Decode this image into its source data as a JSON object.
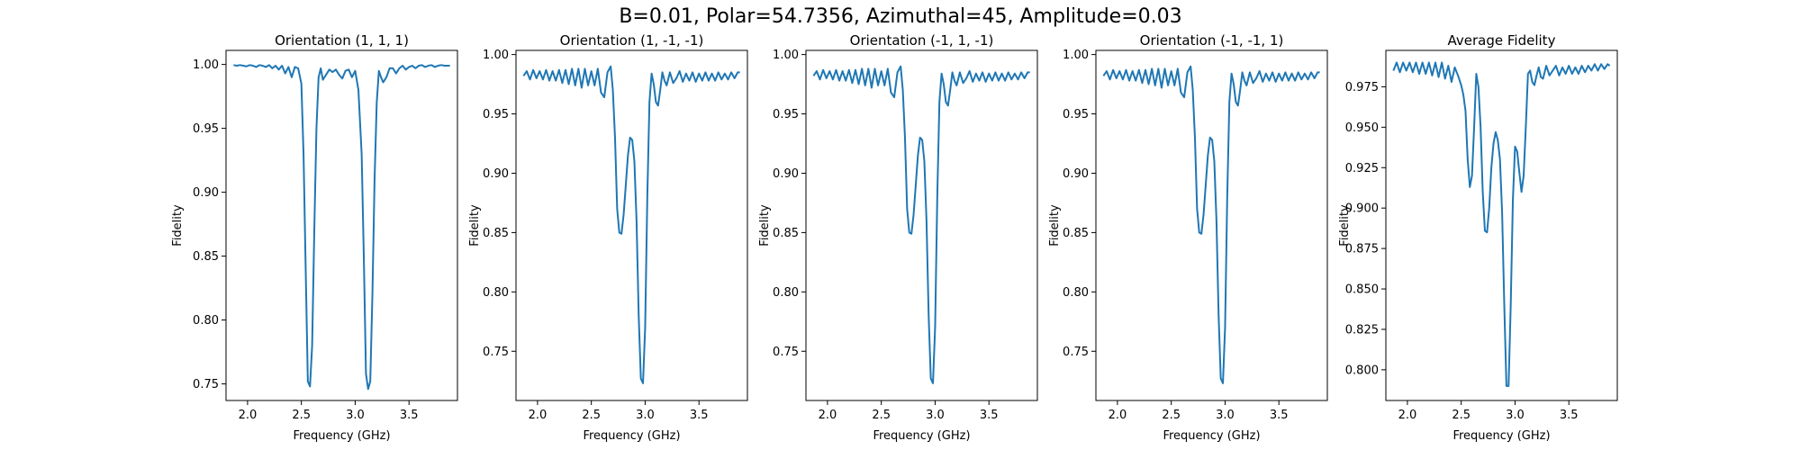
{
  "figure": {
    "suptitle": "B=0.01, Polar=54.7356, Azimuthal=45, Amplitude=0.03",
    "line_color": "#1f77b4"
  },
  "chart_data": [
    {
      "type": "line",
      "title": "Orientation (1, 1, 1)",
      "xlabel": "Frequency (GHz)",
      "ylabel": "Fidelity",
      "xlim": [
        1.8,
        3.95
      ],
      "ylim": [
        0.737,
        1.011
      ],
      "xticks": [
        2.0,
        2.5,
        3.0,
        3.5
      ],
      "xtick_labels": [
        "2.0",
        "2.5",
        "3.0",
        "3.5"
      ],
      "yticks": [
        0.75,
        0.8,
        0.85,
        0.9,
        0.95,
        1.0
      ],
      "ytick_labels": [
        "0.75",
        "0.80",
        "0.85",
        "0.90",
        "0.95",
        "1.00"
      ],
      "series": [
        {
          "x": [
            1.87,
            1.9,
            1.93,
            1.96,
            1.99,
            2.02,
            2.05,
            2.08,
            2.11,
            2.14,
            2.17,
            2.2,
            2.23,
            2.26,
            2.29,
            2.32,
            2.35,
            2.38,
            2.41,
            2.44,
            2.47,
            2.5,
            2.52,
            2.54,
            2.56,
            2.58,
            2.6,
            2.62,
            2.64,
            2.66,
            2.68,
            2.7,
            2.73,
            2.76,
            2.79,
            2.82,
            2.85,
            2.88,
            2.91,
            2.94,
            2.97,
            3.0,
            3.03,
            3.06,
            3.08,
            3.1,
            3.12,
            3.14,
            3.16,
            3.18,
            3.2,
            3.22,
            3.24,
            3.26,
            3.29,
            3.32,
            3.35,
            3.38,
            3.41,
            3.44,
            3.47,
            3.5,
            3.53,
            3.56,
            3.59,
            3.62,
            3.65,
            3.68,
            3.71,
            3.74,
            3.77,
            3.8,
            3.83,
            3.86,
            3.88
          ],
          "y": [
            0.9995,
            0.999,
            0.9995,
            0.999,
            0.9985,
            0.9995,
            0.999,
            0.998,
            0.9995,
            0.999,
            0.998,
            0.9995,
            0.997,
            0.999,
            0.996,
            0.999,
            0.993,
            0.998,
            0.99,
            0.998,
            0.997,
            0.985,
            0.93,
            0.84,
            0.752,
            0.748,
            0.78,
            0.87,
            0.95,
            0.99,
            0.997,
            0.988,
            0.992,
            0.996,
            0.994,
            0.996,
            0.992,
            0.989,
            0.995,
            0.996,
            0.99,
            0.995,
            0.98,
            0.93,
            0.85,
            0.758,
            0.746,
            0.752,
            0.82,
            0.91,
            0.97,
            0.995,
            0.99,
            0.986,
            0.99,
            0.997,
            0.997,
            0.993,
            0.997,
            0.999,
            0.996,
            0.998,
            0.999,
            0.997,
            0.999,
            0.9995,
            0.998,
            0.999,
            0.9995,
            0.998,
            0.999,
            0.9995,
            0.999,
            0.999,
            0.999
          ]
        }
      ]
    },
    {
      "type": "line",
      "title": "Orientation (1, -1, -1)",
      "xlabel": "Frequency (GHz)",
      "ylabel": "Fidelity",
      "xlim": [
        1.8,
        3.95
      ],
      "ylim": [
        0.7085,
        1.0035
      ],
      "xticks": [
        2.0,
        2.5,
        3.0,
        3.5
      ],
      "xtick_labels": [
        "2.0",
        "2.5",
        "3.0",
        "3.5"
      ],
      "yticks": [
        0.75,
        0.8,
        0.85,
        0.9,
        0.95,
        1.0
      ],
      "ytick_labels": [
        "0.75",
        "0.80",
        "0.85",
        "0.90",
        "0.95",
        "1.00"
      ],
      "series": [
        {
          "x": [
            1.87,
            1.9,
            1.93,
            1.96,
            1.99,
            2.02,
            2.05,
            2.08,
            2.11,
            2.14,
            2.17,
            2.2,
            2.23,
            2.26,
            2.29,
            2.32,
            2.35,
            2.38,
            2.41,
            2.44,
            2.47,
            2.5,
            2.53,
            2.56,
            2.59,
            2.62,
            2.65,
            2.68,
            2.7,
            2.72,
            2.74,
            2.76,
            2.78,
            2.8,
            2.82,
            2.84,
            2.86,
            2.88,
            2.9,
            2.92,
            2.94,
            2.96,
            2.98,
            3.0,
            3.02,
            3.04,
            3.06,
            3.08,
            3.1,
            3.12,
            3.14,
            3.16,
            3.18,
            3.2,
            3.23,
            3.26,
            3.29,
            3.32,
            3.35,
            3.38,
            3.41,
            3.44,
            3.47,
            3.5,
            3.53,
            3.56,
            3.59,
            3.62,
            3.65,
            3.68,
            3.71,
            3.74,
            3.77,
            3.8,
            3.83,
            3.86,
            3.88
          ],
          "y": [
            0.982,
            0.986,
            0.979,
            0.987,
            0.98,
            0.986,
            0.979,
            0.987,
            0.978,
            0.986,
            0.978,
            0.987,
            0.976,
            0.987,
            0.975,
            0.988,
            0.974,
            0.988,
            0.972,
            0.988,
            0.974,
            0.986,
            0.974,
            0.988,
            0.968,
            0.964,
            0.985,
            0.99,
            0.97,
            0.93,
            0.87,
            0.85,
            0.849,
            0.865,
            0.89,
            0.915,
            0.93,
            0.928,
            0.91,
            0.86,
            0.78,
            0.727,
            0.723,
            0.77,
            0.88,
            0.96,
            0.984,
            0.975,
            0.96,
            0.957,
            0.97,
            0.985,
            0.978,
            0.974,
            0.985,
            0.976,
            0.98,
            0.986,
            0.977,
            0.984,
            0.978,
            0.985,
            0.977,
            0.984,
            0.978,
            0.985,
            0.978,
            0.984,
            0.978,
            0.985,
            0.979,
            0.984,
            0.979,
            0.985,
            0.98,
            0.985,
            0.985
          ]
        }
      ]
    },
    {
      "type": "line",
      "title": "Orientation (-1, 1, -1)",
      "xlabel": "Frequency (GHz)",
      "ylabel": "Fidelity",
      "xlim": [
        1.8,
        3.95
      ],
      "ylim": [
        0.7085,
        1.0035
      ],
      "xticks": [
        2.0,
        2.5,
        3.0,
        3.5
      ],
      "xtick_labels": [
        "2.0",
        "2.5",
        "3.0",
        "3.5"
      ],
      "yticks": [
        0.75,
        0.8,
        0.85,
        0.9,
        0.95,
        1.0
      ],
      "ytick_labels": [
        "0.75",
        "0.80",
        "0.85",
        "0.90",
        "0.95",
        "1.00"
      ],
      "series": [
        {
          "x": [
            1.87,
            1.9,
            1.93,
            1.96,
            1.99,
            2.02,
            2.05,
            2.08,
            2.11,
            2.14,
            2.17,
            2.2,
            2.23,
            2.26,
            2.29,
            2.32,
            2.35,
            2.38,
            2.41,
            2.44,
            2.47,
            2.5,
            2.53,
            2.56,
            2.59,
            2.62,
            2.65,
            2.68,
            2.7,
            2.72,
            2.74,
            2.76,
            2.78,
            2.8,
            2.82,
            2.84,
            2.86,
            2.88,
            2.9,
            2.92,
            2.94,
            2.96,
            2.98,
            3.0,
            3.02,
            3.04,
            3.06,
            3.08,
            3.1,
            3.12,
            3.14,
            3.16,
            3.18,
            3.2,
            3.23,
            3.26,
            3.29,
            3.32,
            3.35,
            3.38,
            3.41,
            3.44,
            3.47,
            3.5,
            3.53,
            3.56,
            3.59,
            3.62,
            3.65,
            3.68,
            3.71,
            3.74,
            3.77,
            3.8,
            3.83,
            3.86,
            3.88
          ],
          "y": [
            0.982,
            0.986,
            0.979,
            0.987,
            0.98,
            0.986,
            0.979,
            0.987,
            0.978,
            0.986,
            0.978,
            0.987,
            0.976,
            0.987,
            0.975,
            0.988,
            0.974,
            0.988,
            0.972,
            0.988,
            0.974,
            0.986,
            0.974,
            0.988,
            0.968,
            0.964,
            0.985,
            0.99,
            0.97,
            0.93,
            0.87,
            0.85,
            0.849,
            0.865,
            0.89,
            0.915,
            0.93,
            0.928,
            0.91,
            0.86,
            0.78,
            0.727,
            0.723,
            0.77,
            0.88,
            0.96,
            0.984,
            0.975,
            0.96,
            0.957,
            0.97,
            0.985,
            0.978,
            0.974,
            0.985,
            0.976,
            0.98,
            0.986,
            0.977,
            0.984,
            0.978,
            0.985,
            0.977,
            0.984,
            0.978,
            0.985,
            0.978,
            0.984,
            0.978,
            0.985,
            0.979,
            0.984,
            0.979,
            0.985,
            0.98,
            0.985,
            0.985
          ]
        }
      ]
    },
    {
      "type": "line",
      "title": "Orientation (-1, -1, 1)",
      "xlabel": "Frequency (GHz)",
      "ylabel": "Fidelity",
      "xlim": [
        1.8,
        3.95
      ],
      "ylim": [
        0.7085,
        1.0035
      ],
      "xticks": [
        2.0,
        2.5,
        3.0,
        3.5
      ],
      "xtick_labels": [
        "2.0",
        "2.5",
        "3.0",
        "3.5"
      ],
      "yticks": [
        0.75,
        0.8,
        0.85,
        0.9,
        0.95,
        1.0
      ],
      "ytick_labels": [
        "0.75",
        "0.80",
        "0.85",
        "0.90",
        "0.95",
        "1.00"
      ],
      "series": [
        {
          "x": [
            1.87,
            1.9,
            1.93,
            1.96,
            1.99,
            2.02,
            2.05,
            2.08,
            2.11,
            2.14,
            2.17,
            2.2,
            2.23,
            2.26,
            2.29,
            2.32,
            2.35,
            2.38,
            2.41,
            2.44,
            2.47,
            2.5,
            2.53,
            2.56,
            2.59,
            2.62,
            2.65,
            2.68,
            2.7,
            2.72,
            2.74,
            2.76,
            2.78,
            2.8,
            2.82,
            2.84,
            2.86,
            2.88,
            2.9,
            2.92,
            2.94,
            2.96,
            2.98,
            3.0,
            3.02,
            3.04,
            3.06,
            3.08,
            3.1,
            3.12,
            3.14,
            3.16,
            3.18,
            3.2,
            3.23,
            3.26,
            3.29,
            3.32,
            3.35,
            3.38,
            3.41,
            3.44,
            3.47,
            3.5,
            3.53,
            3.56,
            3.59,
            3.62,
            3.65,
            3.68,
            3.71,
            3.74,
            3.77,
            3.8,
            3.83,
            3.86,
            3.88
          ],
          "y": [
            0.982,
            0.986,
            0.979,
            0.987,
            0.98,
            0.986,
            0.979,
            0.987,
            0.978,
            0.986,
            0.978,
            0.987,
            0.976,
            0.987,
            0.975,
            0.988,
            0.974,
            0.988,
            0.972,
            0.988,
            0.974,
            0.986,
            0.974,
            0.988,
            0.968,
            0.964,
            0.985,
            0.99,
            0.97,
            0.93,
            0.87,
            0.85,
            0.849,
            0.865,
            0.89,
            0.915,
            0.93,
            0.928,
            0.91,
            0.86,
            0.78,
            0.727,
            0.723,
            0.77,
            0.88,
            0.96,
            0.984,
            0.975,
            0.96,
            0.957,
            0.97,
            0.985,
            0.978,
            0.974,
            0.985,
            0.976,
            0.98,
            0.986,
            0.977,
            0.984,
            0.978,
            0.985,
            0.977,
            0.984,
            0.978,
            0.985,
            0.978,
            0.984,
            0.978,
            0.985,
            0.979,
            0.984,
            0.979,
            0.985,
            0.98,
            0.985,
            0.985
          ]
        }
      ]
    },
    {
      "type": "line",
      "title": "Average Fidelity",
      "xlabel": "Frequency (GHz)",
      "ylabel": "Fidelity",
      "xlim": [
        1.8,
        3.95
      ],
      "ylim": [
        0.781,
        0.9975
      ],
      "xticks": [
        2.0,
        2.5,
        3.0,
        3.5
      ],
      "xtick_labels": [
        "2.0",
        "2.5",
        "3.0",
        "3.5"
      ],
      "yticks": [
        0.8,
        0.825,
        0.85,
        0.875,
        0.9,
        0.925,
        0.95,
        0.975
      ],
      "ytick_labels": [
        "0.800",
        "0.825",
        "0.850",
        "0.875",
        "0.900",
        "0.925",
        "0.950",
        "0.975"
      ],
      "series": [
        {
          "x": [
            1.87,
            1.9,
            1.93,
            1.96,
            1.99,
            2.02,
            2.05,
            2.08,
            2.11,
            2.14,
            2.17,
            2.2,
            2.23,
            2.26,
            2.29,
            2.32,
            2.35,
            2.38,
            2.41,
            2.44,
            2.47,
            2.5,
            2.52,
            2.54,
            2.56,
            2.58,
            2.6,
            2.62,
            2.64,
            2.66,
            2.68,
            2.7,
            2.72,
            2.74,
            2.76,
            2.78,
            2.8,
            2.82,
            2.84,
            2.86,
            2.88,
            2.9,
            2.92,
            2.94,
            2.96,
            2.98,
            3.0,
            3.02,
            3.04,
            3.06,
            3.08,
            3.1,
            3.12,
            3.14,
            3.16,
            3.18,
            3.2,
            3.22,
            3.24,
            3.26,
            3.29,
            3.32,
            3.35,
            3.38,
            3.41,
            3.44,
            3.47,
            3.5,
            3.53,
            3.56,
            3.59,
            3.62,
            3.65,
            3.68,
            3.71,
            3.74,
            3.77,
            3.8,
            3.83,
            3.86,
            3.88
          ],
          "y": [
            0.985,
            0.99,
            0.984,
            0.99,
            0.985,
            0.99,
            0.984,
            0.99,
            0.983,
            0.99,
            0.983,
            0.99,
            0.982,
            0.99,
            0.981,
            0.99,
            0.98,
            0.988,
            0.978,
            0.987,
            0.982,
            0.976,
            0.97,
            0.96,
            0.93,
            0.913,
            0.92,
            0.95,
            0.983,
            0.975,
            0.95,
            0.91,
            0.886,
            0.885,
            0.9,
            0.925,
            0.94,
            0.947,
            0.942,
            0.93,
            0.897,
            0.84,
            0.79,
            0.79,
            0.84,
            0.905,
            0.938,
            0.935,
            0.922,
            0.91,
            0.92,
            0.95,
            0.983,
            0.985,
            0.978,
            0.976,
            0.982,
            0.987,
            0.981,
            0.98,
            0.988,
            0.982,
            0.985,
            0.988,
            0.982,
            0.987,
            0.983,
            0.988,
            0.983,
            0.987,
            0.983,
            0.988,
            0.984,
            0.988,
            0.985,
            0.989,
            0.985,
            0.989,
            0.986,
            0.989,
            0.988
          ]
        }
      ]
    }
  ]
}
